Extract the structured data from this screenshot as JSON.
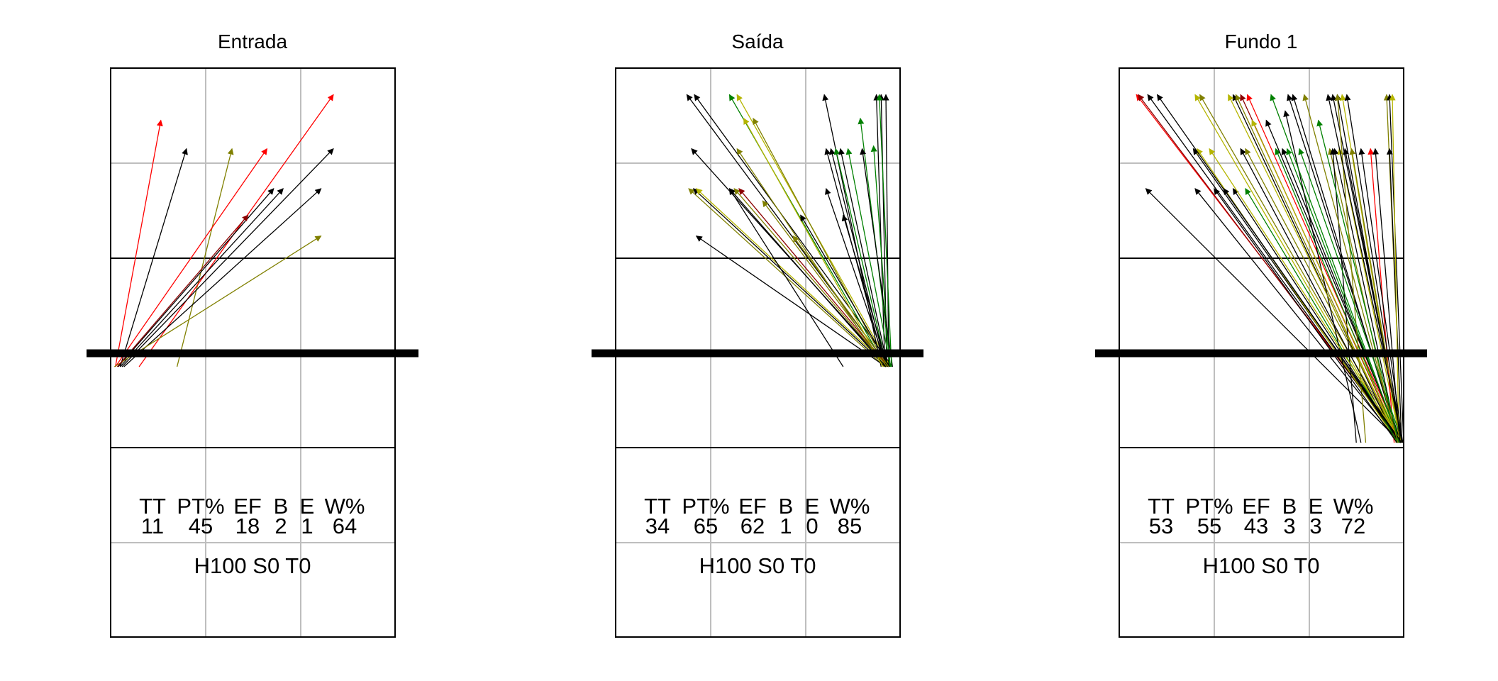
{
  "colors": {
    "red": "#ff0000",
    "darkred": "#8b0000",
    "black": "#000000",
    "olive": "#808000",
    "khaki": "#b5b500",
    "green": "#008000"
  },
  "chart_data": [
    {
      "type": "arrow-chart",
      "title": "Entrada",
      "xlim": [
        0,
        3
      ],
      "ylim": [
        0,
        6
      ],
      "stats": {
        "headers": [
          "TT",
          "PT%",
          "EF",
          "B",
          "E",
          "W%"
        ],
        "values": [
          "11",
          "45",
          "18",
          "2",
          "1",
          "64"
        ]
      },
      "footer": "H100 S0 T0",
      "arrows": [
        {
          "x0": 0.05,
          "y0": 2.85,
          "x1": 0.53,
          "y1": 5.45,
          "color": "red"
        },
        {
          "x0": 0.1,
          "y0": 2.85,
          "x1": 0.8,
          "y1": 5.15,
          "color": "black"
        },
        {
          "x0": 0.7,
          "y0": 2.85,
          "x1": 1.28,
          "y1": 5.15,
          "color": "olive"
        },
        {
          "x0": 0.05,
          "y0": 2.85,
          "x1": 1.65,
          "y1": 5.15,
          "color": "red"
        },
        {
          "x0": 0.3,
          "y0": 2.85,
          "x1": 2.35,
          "y1": 5.72,
          "color": "red"
        },
        {
          "x0": 0.12,
          "y0": 2.85,
          "x1": 2.35,
          "y1": 5.15,
          "color": "black"
        },
        {
          "x0": 0.08,
          "y0": 2.85,
          "x1": 1.72,
          "y1": 4.73,
          "color": "black"
        },
        {
          "x0": 0.1,
          "y0": 2.85,
          "x1": 1.82,
          "y1": 4.73,
          "color": "black"
        },
        {
          "x0": 0.14,
          "y0": 2.85,
          "x1": 2.22,
          "y1": 4.73,
          "color": "black"
        },
        {
          "x0": 0.04,
          "y0": 2.85,
          "x1": 2.22,
          "y1": 4.23,
          "color": "olive"
        },
        {
          "x0": 0.07,
          "y0": 2.85,
          "x1": 1.45,
          "y1": 4.45,
          "color": "darkred"
        }
      ]
    },
    {
      "type": "arrow-chart",
      "title": "Saída",
      "xlim": [
        0,
        3
      ],
      "ylim": [
        0,
        6
      ],
      "stats": {
        "headers": [
          "TT",
          "PT%",
          "EF",
          "B",
          "E",
          "W%"
        ],
        "values": [
          "34",
          "65",
          "62",
          "1",
          "0",
          "85"
        ]
      },
      "footer": "H100 S0 T0",
      "arrows": [
        {
          "x0": 2.88,
          "y0": 2.85,
          "x1": 0.75,
          "y1": 5.72,
          "color": "black"
        },
        {
          "x0": 2.92,
          "y0": 2.85,
          "x1": 0.83,
          "y1": 5.72,
          "color": "black"
        },
        {
          "x0": 2.85,
          "y0": 2.85,
          "x1": 1.2,
          "y1": 5.72,
          "color": "green"
        },
        {
          "x0": 2.9,
          "y0": 2.85,
          "x1": 1.28,
          "y1": 5.72,
          "color": "khaki"
        },
        {
          "x0": 2.86,
          "y0": 2.85,
          "x1": 1.45,
          "y1": 5.47,
          "color": "olive"
        },
        {
          "x0": 2.8,
          "y0": 2.85,
          "x1": 2.2,
          "y1": 5.72,
          "color": "black"
        },
        {
          "x0": 2.84,
          "y0": 2.85,
          "x1": 2.75,
          "y1": 5.72,
          "color": "black"
        },
        {
          "x0": 2.86,
          "y0": 2.85,
          "x1": 2.8,
          "y1": 5.72,
          "color": "black"
        },
        {
          "x0": 2.88,
          "y0": 2.85,
          "x1": 2.85,
          "y1": 5.72,
          "color": "black"
        },
        {
          "x0": 2.9,
          "y0": 2.85,
          "x1": 2.58,
          "y1": 5.47,
          "color": "green"
        },
        {
          "x0": 2.87,
          "y0": 2.85,
          "x1": 0.8,
          "y1": 5.15,
          "color": "black"
        },
        {
          "x0": 2.83,
          "y0": 2.85,
          "x1": 1.28,
          "y1": 5.15,
          "color": "olive"
        },
        {
          "x0": 2.84,
          "y0": 2.85,
          "x1": 2.22,
          "y1": 5.15,
          "color": "black"
        },
        {
          "x0": 2.85,
          "y0": 2.85,
          "x1": 2.27,
          "y1": 5.15,
          "color": "black"
        },
        {
          "x0": 2.86,
          "y0": 2.85,
          "x1": 2.32,
          "y1": 5.15,
          "color": "green"
        },
        {
          "x0": 2.87,
          "y0": 2.85,
          "x1": 2.37,
          "y1": 5.15,
          "color": "black"
        },
        {
          "x0": 2.89,
          "y0": 2.85,
          "x1": 2.72,
          "y1": 5.18,
          "color": "green"
        },
        {
          "x0": 2.84,
          "y0": 2.85,
          "x1": 0.77,
          "y1": 4.73,
          "color": "olive"
        },
        {
          "x0": 2.86,
          "y0": 2.85,
          "x1": 0.82,
          "y1": 4.73,
          "color": "black"
        },
        {
          "x0": 2.88,
          "y0": 2.85,
          "x1": 0.85,
          "y1": 4.73,
          "color": "khaki"
        },
        {
          "x0": 2.85,
          "y0": 2.85,
          "x1": 1.2,
          "y1": 4.73,
          "color": "black"
        },
        {
          "x0": 2.87,
          "y0": 2.85,
          "x1": 1.25,
          "y1": 4.73,
          "color": "olive"
        },
        {
          "x0": 2.88,
          "y0": 2.85,
          "x1": 1.3,
          "y1": 4.73,
          "color": "darkred"
        },
        {
          "x0": 2.86,
          "y0": 2.85,
          "x1": 2.22,
          "y1": 4.73,
          "color": "black"
        },
        {
          "x0": 2.87,
          "y0": 2.85,
          "x1": 2.4,
          "y1": 4.45,
          "color": "black"
        },
        {
          "x0": 2.85,
          "y0": 2.85,
          "x1": 0.85,
          "y1": 4.23,
          "color": "black"
        },
        {
          "x0": 2.88,
          "y0": 2.85,
          "x1": 1.87,
          "y1": 4.23,
          "color": "olive"
        },
        {
          "x0": 2.4,
          "y0": 2.85,
          "x1": 1.2,
          "y1": 4.73,
          "color": "black"
        },
        {
          "x0": 2.82,
          "y0": 2.85,
          "x1": 1.35,
          "y1": 5.47,
          "color": "khaki"
        },
        {
          "x0": 2.9,
          "y0": 2.85,
          "x1": 2.45,
          "y1": 5.15,
          "color": "green"
        },
        {
          "x0": 2.92,
          "y0": 2.85,
          "x1": 2.6,
          "y1": 5.15,
          "color": "black"
        },
        {
          "x0": 2.91,
          "y0": 2.85,
          "x1": 2.78,
          "y1": 5.72,
          "color": "green"
        },
        {
          "x0": 2.89,
          "y0": 2.85,
          "x1": 1.95,
          "y1": 4.45,
          "color": "black"
        },
        {
          "x0": 2.86,
          "y0": 2.85,
          "x1": 1.55,
          "y1": 4.6,
          "color": "olive"
        }
      ]
    },
    {
      "type": "arrow-chart",
      "title": "Fundo 1",
      "xlim": [
        0,
        3
      ],
      "ylim": [
        0,
        6
      ],
      "stats": {
        "headers": [
          "TT",
          "PT%",
          "EF",
          "B",
          "E",
          "W%"
        ],
        "values": [
          "53",
          "55",
          "43",
          "3",
          "3",
          "72"
        ]
      },
      "footer": "H100 S0 T0",
      "arrows": [
        {
          "x0": 3.0,
          "y0": 2.05,
          "x1": 0.18,
          "y1": 5.72,
          "color": "red"
        },
        {
          "x0": 2.98,
          "y0": 2.05,
          "x1": 0.2,
          "y1": 5.72,
          "color": "darkred"
        },
        {
          "x0": 2.96,
          "y0": 2.05,
          "x1": 0.3,
          "y1": 5.72,
          "color": "black"
        },
        {
          "x0": 2.95,
          "y0": 2.05,
          "x1": 0.8,
          "y1": 5.72,
          "color": "khaki"
        },
        {
          "x0": 2.97,
          "y0": 2.05,
          "x1": 0.85,
          "y1": 5.72,
          "color": "olive"
        },
        {
          "x0": 2.93,
          "y0": 2.05,
          "x1": 1.2,
          "y1": 5.72,
          "color": "black"
        },
        {
          "x0": 2.94,
          "y0": 2.05,
          "x1": 1.23,
          "y1": 5.72,
          "color": "olive"
        },
        {
          "x0": 2.96,
          "y0": 2.05,
          "x1": 1.28,
          "y1": 5.72,
          "color": "darkred"
        },
        {
          "x0": 2.98,
          "y0": 2.05,
          "x1": 1.35,
          "y1": 5.72,
          "color": "red"
        },
        {
          "x0": 2.97,
          "y0": 2.05,
          "x1": 1.78,
          "y1": 5.72,
          "color": "black"
        },
        {
          "x0": 2.95,
          "y0": 2.05,
          "x1": 1.83,
          "y1": 5.72,
          "color": "black"
        },
        {
          "x0": 2.99,
          "y0": 2.05,
          "x1": 2.25,
          "y1": 5.72,
          "color": "black"
        },
        {
          "x0": 2.97,
          "y0": 2.05,
          "x1": 2.3,
          "y1": 5.72,
          "color": "black"
        },
        {
          "x0": 2.96,
          "y0": 2.05,
          "x1": 2.35,
          "y1": 5.72,
          "color": "khaki"
        },
        {
          "x0": 2.98,
          "y0": 2.05,
          "x1": 2.82,
          "y1": 5.72,
          "color": "olive"
        },
        {
          "x0": 3.0,
          "y0": 2.05,
          "x1": 2.85,
          "y1": 5.72,
          "color": "black"
        },
        {
          "x0": 2.96,
          "y0": 2.05,
          "x1": 0.78,
          "y1": 5.15,
          "color": "black"
        },
        {
          "x0": 2.94,
          "y0": 2.05,
          "x1": 0.82,
          "y1": 5.15,
          "color": "khaki"
        },
        {
          "x0": 2.93,
          "y0": 2.05,
          "x1": 1.28,
          "y1": 5.15,
          "color": "black"
        },
        {
          "x0": 2.98,
          "y0": 2.05,
          "x1": 1.33,
          "y1": 5.15,
          "color": "olive"
        },
        {
          "x0": 2.95,
          "y0": 2.05,
          "x1": 1.65,
          "y1": 5.15,
          "color": "green"
        },
        {
          "x0": 2.97,
          "y0": 2.05,
          "x1": 1.72,
          "y1": 5.15,
          "color": "black"
        },
        {
          "x0": 2.96,
          "y0": 2.05,
          "x1": 1.77,
          "y1": 5.15,
          "color": "green"
        },
        {
          "x0": 2.92,
          "y0": 2.05,
          "x1": 2.22,
          "y1": 5.15,
          "color": "olive"
        },
        {
          "x0": 2.94,
          "y0": 2.05,
          "x1": 2.27,
          "y1": 5.15,
          "color": "black"
        },
        {
          "x0": 2.97,
          "y0": 2.05,
          "x1": 2.32,
          "y1": 5.15,
          "color": "khaki"
        },
        {
          "x0": 2.99,
          "y0": 2.05,
          "x1": 2.38,
          "y1": 5.15,
          "color": "black"
        },
        {
          "x0": 2.9,
          "y0": 2.05,
          "x1": 2.65,
          "y1": 5.15,
          "color": "red"
        },
        {
          "x0": 2.98,
          "y0": 2.05,
          "x1": 2.85,
          "y1": 5.15,
          "color": "black"
        },
        {
          "x0": 2.97,
          "y0": 2.05,
          "x1": 0.28,
          "y1": 4.73,
          "color": "black"
        },
        {
          "x0": 2.95,
          "y0": 2.05,
          "x1": 0.8,
          "y1": 4.73,
          "color": "black"
        },
        {
          "x0": 2.96,
          "y0": 2.05,
          "x1": 1.2,
          "y1": 4.73,
          "color": "black"
        },
        {
          "x0": 2.94,
          "y0": 2.05,
          "x1": 1.33,
          "y1": 4.73,
          "color": "green"
        },
        {
          "x0": 2.98,
          "y0": 2.05,
          "x1": 1.55,
          "y1": 5.45,
          "color": "black"
        },
        {
          "x0": 2.55,
          "y0": 2.05,
          "x1": 1.75,
          "y1": 5.55,
          "color": "black"
        },
        {
          "x0": 2.5,
          "y0": 2.05,
          "x1": 2.25,
          "y1": 5.15,
          "color": "black"
        },
        {
          "x0": 2.6,
          "y0": 2.05,
          "x1": 2.3,
          "y1": 5.72,
          "color": "olive"
        },
        {
          "x0": 2.99,
          "y0": 2.05,
          "x1": 1.9,
          "y1": 5.15,
          "color": "green"
        },
        {
          "x0": 2.97,
          "y0": 2.05,
          "x1": 1.4,
          "y1": 5.45,
          "color": "khaki"
        },
        {
          "x0": 2.96,
          "y0": 2.05,
          "x1": 1.6,
          "y1": 5.72,
          "color": "green"
        },
        {
          "x0": 2.98,
          "y0": 2.05,
          "x1": 2.4,
          "y1": 5.72,
          "color": "black"
        },
        {
          "x0": 2.95,
          "y0": 2.05,
          "x1": 2.88,
          "y1": 5.72,
          "color": "khaki"
        },
        {
          "x0": 2.97,
          "y0": 2.05,
          "x1": 2.45,
          "y1": 5.15,
          "color": "olive"
        },
        {
          "x0": 2.99,
          "y0": 2.05,
          "x1": 2.55,
          "y1": 5.15,
          "color": "black"
        },
        {
          "x0": 2.96,
          "y0": 2.05,
          "x1": 1.15,
          "y1": 5.72,
          "color": "khaki"
        },
        {
          "x0": 2.98,
          "y0": 2.05,
          "x1": 0.95,
          "y1": 5.15,
          "color": "khaki"
        },
        {
          "x0": 2.93,
          "y0": 2.05,
          "x1": 1.0,
          "y1": 4.73,
          "color": "black"
        },
        {
          "x0": 2.97,
          "y0": 2.05,
          "x1": 1.1,
          "y1": 4.73,
          "color": "black"
        },
        {
          "x0": 2.95,
          "y0": 2.05,
          "x1": 2.1,
          "y1": 5.45,
          "color": "green"
        },
        {
          "x0": 2.96,
          "y0": 2.05,
          "x1": 2.7,
          "y1": 5.15,
          "color": "black"
        },
        {
          "x0": 2.99,
          "y0": 2.05,
          "x1": 2.2,
          "y1": 5.72,
          "color": "black"
        },
        {
          "x0": 2.98,
          "y0": 2.05,
          "x1": 0.4,
          "y1": 5.72,
          "color": "black"
        },
        {
          "x0": 2.94,
          "y0": 2.05,
          "x1": 1.95,
          "y1": 5.72,
          "color": "olive"
        }
      ]
    }
  ]
}
